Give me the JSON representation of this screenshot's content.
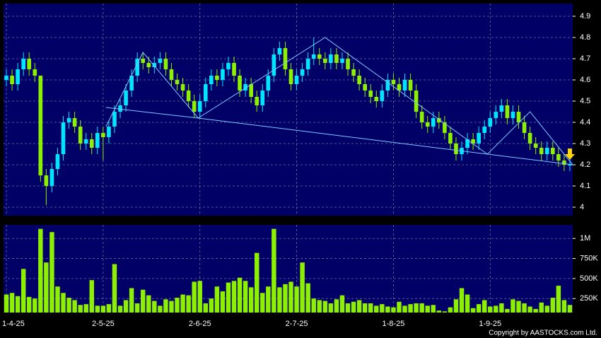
{
  "chart_data": {
    "type": "candlestick",
    "categories": [
      "1-4-25",
      null,
      null,
      null,
      null,
      null,
      null,
      null,
      null,
      null,
      null,
      null,
      null,
      null,
      null,
      null,
      null,
      "2-5-25",
      null,
      null,
      null,
      null,
      null,
      null,
      null,
      null,
      null,
      null,
      null,
      null,
      null,
      null,
      null,
      null,
      "2-6-25",
      null,
      null,
      null,
      null,
      null,
      null,
      null,
      null,
      null,
      null,
      null,
      null,
      null,
      null,
      null,
      null,
      "2-7-25",
      null,
      null,
      null,
      null,
      null,
      null,
      null,
      null,
      null,
      null,
      null,
      null,
      null,
      null,
      null,
      null,
      "1-8-25",
      null,
      null,
      null,
      null,
      null,
      null,
      null,
      null,
      null,
      null,
      null,
      null,
      null,
      null,
      null,
      null,
      "1-9-25",
      null,
      null,
      null,
      null,
      null,
      null,
      null,
      null,
      null,
      null,
      null,
      null,
      null,
      null
    ],
    "open": [
      4.6,
      4.62,
      4.58,
      4.65,
      4.7,
      4.65,
      4.62,
      4.15,
      4.1,
      4.18,
      4.25,
      4.4,
      4.42,
      4.38,
      4.3,
      4.32,
      4.28,
      4.35,
      4.33,
      4.38,
      4.45,
      4.48,
      4.55,
      4.62,
      4.7,
      4.68,
      4.66,
      4.68,
      4.7,
      4.65,
      4.6,
      4.58,
      4.55,
      4.5,
      4.45,
      4.5,
      4.58,
      4.62,
      4.6,
      4.65,
      4.68,
      4.62,
      4.55,
      4.58,
      4.52,
      4.48,
      4.55,
      4.62,
      4.72,
      4.75,
      4.65,
      4.58,
      4.62,
      4.65,
      4.7,
      4.72,
      4.7,
      4.68,
      4.72,
      4.68,
      4.7,
      4.65,
      4.62,
      4.58,
      4.55,
      4.52,
      4.5,
      4.55,
      4.6,
      4.58,
      4.55,
      4.6,
      4.55,
      4.45,
      4.4,
      4.38,
      4.42,
      4.4,
      4.35,
      4.3,
      4.25,
      4.28,
      4.32,
      4.3,
      4.35,
      4.38,
      4.42,
      4.45,
      4.48,
      4.42,
      4.45,
      4.4,
      4.35,
      4.3,
      4.28,
      4.25,
      4.28,
      4.25,
      4.22,
      4.2
    ],
    "high": [
      4.65,
      4.65,
      4.68,
      4.73,
      4.73,
      4.68,
      4.62,
      4.18,
      4.21,
      4.28,
      4.43,
      4.45,
      4.45,
      4.41,
      4.35,
      4.35,
      4.38,
      4.38,
      4.41,
      4.48,
      4.51,
      4.58,
      4.65,
      4.73,
      4.73,
      4.71,
      4.71,
      4.73,
      4.73,
      4.68,
      4.63,
      4.61,
      4.58,
      4.53,
      4.53,
      4.61,
      4.65,
      4.65,
      4.68,
      4.71,
      4.71,
      4.65,
      4.61,
      4.61,
      4.55,
      4.58,
      4.65,
      4.75,
      4.78,
      4.78,
      4.68,
      4.65,
      4.68,
      4.73,
      4.8,
      4.75,
      4.73,
      4.75,
      4.75,
      4.73,
      4.73,
      4.68,
      4.65,
      4.61,
      4.58,
      4.55,
      4.58,
      4.63,
      4.63,
      4.61,
      4.63,
      4.63,
      4.58,
      4.48,
      4.43,
      4.45,
      4.45,
      4.43,
      4.38,
      4.33,
      4.31,
      4.35,
      4.35,
      4.38,
      4.41,
      4.45,
      4.48,
      4.51,
      4.51,
      4.48,
      4.48,
      4.43,
      4.38,
      4.33,
      4.31,
      4.31,
      4.31,
      4.28,
      4.25,
      4.23
    ],
    "low": [
      4.57,
      4.55,
      4.55,
      4.62,
      4.62,
      4.59,
      4.12,
      4.01,
      4.07,
      4.15,
      4.22,
      4.37,
      4.35,
      4.27,
      4.27,
      4.25,
      4.25,
      4.22,
      4.3,
      4.35,
      4.42,
      4.45,
      4.52,
      4.59,
      4.65,
      4.63,
      4.63,
      4.65,
      4.62,
      4.57,
      4.55,
      4.52,
      4.47,
      4.42,
      4.42,
      4.47,
      4.55,
      4.57,
      4.57,
      4.62,
      4.59,
      4.52,
      4.52,
      4.49,
      4.45,
      4.45,
      4.52,
      4.59,
      4.69,
      4.62,
      4.55,
      4.55,
      4.59,
      4.62,
      4.67,
      4.67,
      4.65,
      4.65,
      4.65,
      4.65,
      4.62,
      4.59,
      4.55,
      4.52,
      4.49,
      4.47,
      4.47,
      4.52,
      4.55,
      4.52,
      4.52,
      4.52,
      4.42,
      4.37,
      4.35,
      4.35,
      4.37,
      4.32,
      4.27,
      4.22,
      4.22,
      4.25,
      4.27,
      4.27,
      4.32,
      4.35,
      4.39,
      4.42,
      4.39,
      4.39,
      4.37,
      4.32,
      4.27,
      4.25,
      4.22,
      4.22,
      4.22,
      4.19,
      4.17,
      4.17
    ],
    "close": [
      4.62,
      4.58,
      4.65,
      4.7,
      4.65,
      4.62,
      4.15,
      4.1,
      4.18,
      4.25,
      4.4,
      4.42,
      4.38,
      4.3,
      4.32,
      4.28,
      4.35,
      4.33,
      4.38,
      4.45,
      4.48,
      4.55,
      4.62,
      4.7,
      4.68,
      4.66,
      4.68,
      4.7,
      4.65,
      4.6,
      4.58,
      4.55,
      4.5,
      4.45,
      4.5,
      4.58,
      4.62,
      4.6,
      4.65,
      4.68,
      4.62,
      4.55,
      4.58,
      4.52,
      4.48,
      4.55,
      4.62,
      4.72,
      4.75,
      4.65,
      4.58,
      4.62,
      4.65,
      4.7,
      4.72,
      4.7,
      4.68,
      4.72,
      4.68,
      4.7,
      4.65,
      4.62,
      4.58,
      4.55,
      4.52,
      4.5,
      4.55,
      4.6,
      4.58,
      4.55,
      4.6,
      4.55,
      4.45,
      4.4,
      4.38,
      4.42,
      4.4,
      4.35,
      4.3,
      4.25,
      4.28,
      4.32,
      4.3,
      4.35,
      4.38,
      4.42,
      4.45,
      4.48,
      4.42,
      4.45,
      4.4,
      4.35,
      4.3,
      4.28,
      4.25,
      4.28,
      4.25,
      4.22,
      4.2,
      4.2
    ],
    "volume": [
      300000,
      320000,
      280000,
      620000,
      270000,
      250000,
      1120000,
      700000,
      1080000,
      400000,
      320000,
      260000,
      230000,
      170000,
      180000,
      480000,
      160000,
      160000,
      180000,
      680000,
      160000,
      230000,
      380000,
      190000,
      360000,
      290000,
      220000,
      160000,
      240000,
      220000,
      260000,
      300000,
      290000,
      460000,
      470000,
      190000,
      250000,
      400000,
      340000,
      450000,
      470000,
      510000,
      470000,
      390000,
      820000,
      320000,
      400000,
      1120000,
      390000,
      430000,
      460000,
      400000,
      700000,
      440000,
      250000,
      230000,
      220000,
      190000,
      240000,
      290000,
      190000,
      210000,
      230000,
      190000,
      190000,
      160000,
      180000,
      150000,
      140000,
      210000,
      160000,
      180000,
      190000,
      190000,
      160000,
      170000,
      100000,
      90000,
      140000,
      240000,
      380000,
      300000,
      130000,
      180000,
      230000,
      150000,
      160000,
      190000,
      120000,
      240000,
      220000,
      190000,
      150000,
      120000,
      200000,
      160000,
      260000,
      410000,
      230000,
      170000
    ],
    "up_color": "#00e5ff",
    "down_color": "#8cf000",
    "volume_color": "#8cf000",
    "line_color": "#7ec8ff",
    "ylim": [
      3.96,
      4.96
    ],
    "yticks": [
      4,
      4.1,
      4.2,
      4.3,
      4.4,
      4.5,
      4.6,
      4.7,
      4.8,
      4.9
    ],
    "volume_ylim": [
      75000,
      1170000
    ],
    "volume_yticks": [
      {
        "value": 250000,
        "label": "250K"
      },
      {
        "value": 500000,
        "label": "500K"
      },
      {
        "value": 750000,
        "label": "750K"
      },
      {
        "value": 1000000,
        "label": "1M"
      }
    ],
    "trendlines": [
      {
        "x": [
          17.5,
          24,
          33.7,
          56,
          84.5,
          92,
          99.5
        ],
        "y": [
          4.38,
          4.73,
          4.42,
          4.8,
          4.25,
          4.45,
          4.2
        ]
      },
      {
        "x": [
          17.5,
          33.7,
          99.5
        ],
        "y": [
          4.47,
          4.42,
          4.2
        ]
      }
    ],
    "grid": true,
    "source": "Copyright by AASTOCKS.com Ltd."
  }
}
